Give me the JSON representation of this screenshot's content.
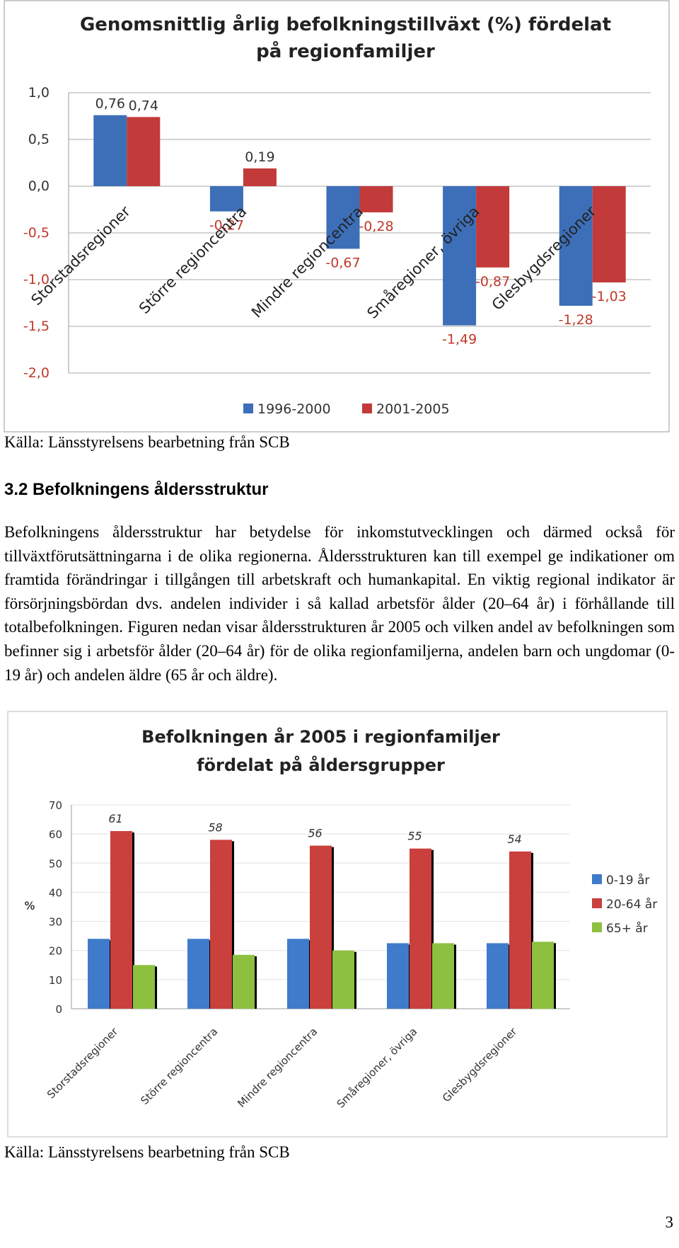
{
  "chart_data": [
    {
      "type": "bar",
      "title": [
        "Genomsnittlig årlig befolkningstillväxt (%) fördelat",
        "på regionfamiljer"
      ],
      "categories": [
        "Storstadsregioner",
        "Större regioncentra",
        "Mindre regioncentra",
        "Småregioner, övriga",
        "Glesbygdsregioner"
      ],
      "series": [
        {
          "name": "1996-2000",
          "color": "#3d6fb8",
          "values": [
            0.76,
            -0.27,
            -0.67,
            -1.49,
            -1.28
          ],
          "value_labels": [
            "0,76",
            "-0,27",
            "-0,67",
            "-1,49",
            "-1,28"
          ]
        },
        {
          "name": "2001-2005",
          "color": "#c23a3a",
          "values": [
            0.74,
            0.19,
            -0.28,
            -0.87,
            -1.03
          ],
          "value_labels": [
            "0,74",
            "0,19",
            "-0,28",
            "-0,87",
            "-1,03"
          ]
        }
      ],
      "ylim": [
        -2.0,
        1.0
      ],
      "yticks": [
        {
          "value": 1.0,
          "label": "1,0"
        },
        {
          "value": 0.5,
          "label": "0,5"
        },
        {
          "value": 0.0,
          "label": "0,0"
        },
        {
          "value": -0.5,
          "label": "-0,5"
        },
        {
          "value": -1.0,
          "label": "-1,0"
        },
        {
          "value": -1.5,
          "label": "-1,5"
        },
        {
          "value": -2.0,
          "label": "-2,0"
        }
      ],
      "grid": true,
      "legend": "bottom"
    },
    {
      "type": "bar",
      "title": [
        "Befolkningen år 2005 i regionfamiljer",
        "fördelat på åldersgrupper"
      ],
      "ylabel": "%",
      "categories": [
        "Storstadsregioner",
        "Större regioncentra",
        "Mindre regioncentra",
        "Småregioner, övriga",
        "Glesbygdsregioner"
      ],
      "series": [
        {
          "name": "0-19 år",
          "color": "#3f7bca",
          "values": [
            24,
            24,
            24,
            22.5,
            22.5
          ]
        },
        {
          "name": "20-64 år",
          "color": "#c9403d",
          "values": [
            61,
            58,
            56,
            55,
            54
          ],
          "value_labels": [
            "61",
            "58",
            "56",
            "55",
            "54"
          ]
        },
        {
          "name": "65+ år",
          "color": "#8dc03f",
          "values": [
            15,
            18.5,
            20,
            22.5,
            23
          ]
        }
      ],
      "ylim": [
        0,
        70
      ],
      "yticks": [
        0,
        10,
        20,
        30,
        40,
        50,
        60,
        70
      ],
      "grid": true,
      "legend": "right"
    }
  ],
  "source_1": "Källa: Länsstyrelsens bearbetning från SCB",
  "heading": "3.2 Befolkningens åldersstruktur",
  "paragraph": "Befolkningens åldersstruktur har betydelse för inkomstutvecklingen och därmed också för tillväxtförutsättningarna i de olika regionerna. Åldersstrukturen kan till exempel ge indikationer om framtida förändringar i tillgången till arbetskraft och humankapital. En viktig regional indikator är försörjningsbördan dvs. andelen individer i så kallad arbetsför ålder (20–64 år) i förhållande till totalbefolkningen. Figuren nedan visar åldersstrukturen år 2005 och vilken andel av befolkningen som befinner sig i arbetsför ålder (20–64 år) för de olika regionfamiljerna, andelen barn och ungdomar (0-19 år) och andelen äldre (65 år och äldre).",
  "source_2": "Källa: Länsstyrelsens bearbetning från SCB",
  "page_number": "3"
}
